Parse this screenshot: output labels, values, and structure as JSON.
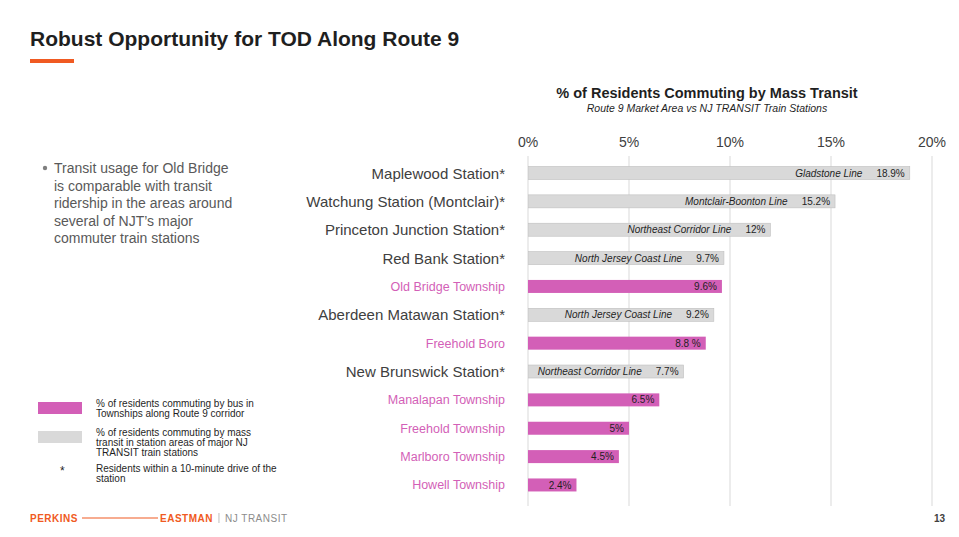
{
  "slide": {
    "title": "Robust Opportunity for TOD Along Route 9",
    "bullet": "Transit usage for Old Bridge is comparable with transit ridership in the areas around several of NJT’s major commuter train stations",
    "note": {
      "symbol": "*",
      "text": "Residents within a 10-minute drive of the station"
    },
    "footer": {
      "left": "PERKINS",
      "right": "EASTMAN",
      "client": "NJ TRANSIT"
    },
    "page": "13"
  },
  "chart_data": {
    "type": "bar",
    "orientation": "horizontal",
    "title": "% of Residents Commuting by Mass Transit",
    "subtitle": "Route 9 Market Area vs NJ TRANSIT Train Stations",
    "categories": [
      "Maplewood Station*",
      "Watchung Station (Montclair)*",
      "Princeton Junction Station*",
      "Red Bank Station*",
      "Old Bridge Township",
      "Aberdeen Matawan Station*",
      "Freehold Boro",
      "New Brunswick Station*",
      "Manalapan Township",
      "Freehold Township",
      "Marlboro Township",
      "Howell Township"
    ],
    "series": [
      {
        "name": "% of residents commuting by bus in Townships along Route 9 corridor",
        "color": "#d35fb7",
        "values": [
          null,
          null,
          null,
          null,
          9.6,
          null,
          8.8,
          null,
          6.5,
          5,
          4.5,
          2.4
        ],
        "value_labels": [
          null,
          null,
          null,
          null,
          "9.6%",
          null,
          "8.8 %",
          null,
          "6.5%",
          "5%",
          "4.5%",
          "2.4%"
        ]
      },
      {
        "name": "% of residents commuting by mass transit in station areas of major NJ TRANSIT train stations",
        "color": "#d9d9d9",
        "values": [
          18.9,
          15.2,
          12,
          9.7,
          null,
          9.2,
          null,
          7.7,
          null,
          null,
          null,
          null
        ],
        "value_labels": [
          "18.9%",
          "15.2%",
          "12%",
          "9.7%",
          null,
          "9.2%",
          null,
          "7.7%",
          null,
          null,
          null,
          null
        ],
        "line_names": [
          "Gladstone Line",
          "Montclair-Boonton Line",
          "Northeast Corridor Line",
          "North Jersey Coast Line",
          null,
          "North Jersey Coast Line",
          null,
          "Northeast Corridor Line",
          null,
          null,
          null,
          null
        ]
      }
    ],
    "xlim": [
      0,
      20
    ],
    "xticks": [
      {
        "value": 0,
        "label": "0%"
      },
      {
        "value": 5,
        "label": "5%"
      },
      {
        "value": 10,
        "label": "10%"
      },
      {
        "value": 15,
        "label": "15%"
      },
      {
        "value": 20,
        "label": "20%"
      }
    ],
    "grid": true,
    "data_labels": true,
    "legend": "bottom-left"
  }
}
